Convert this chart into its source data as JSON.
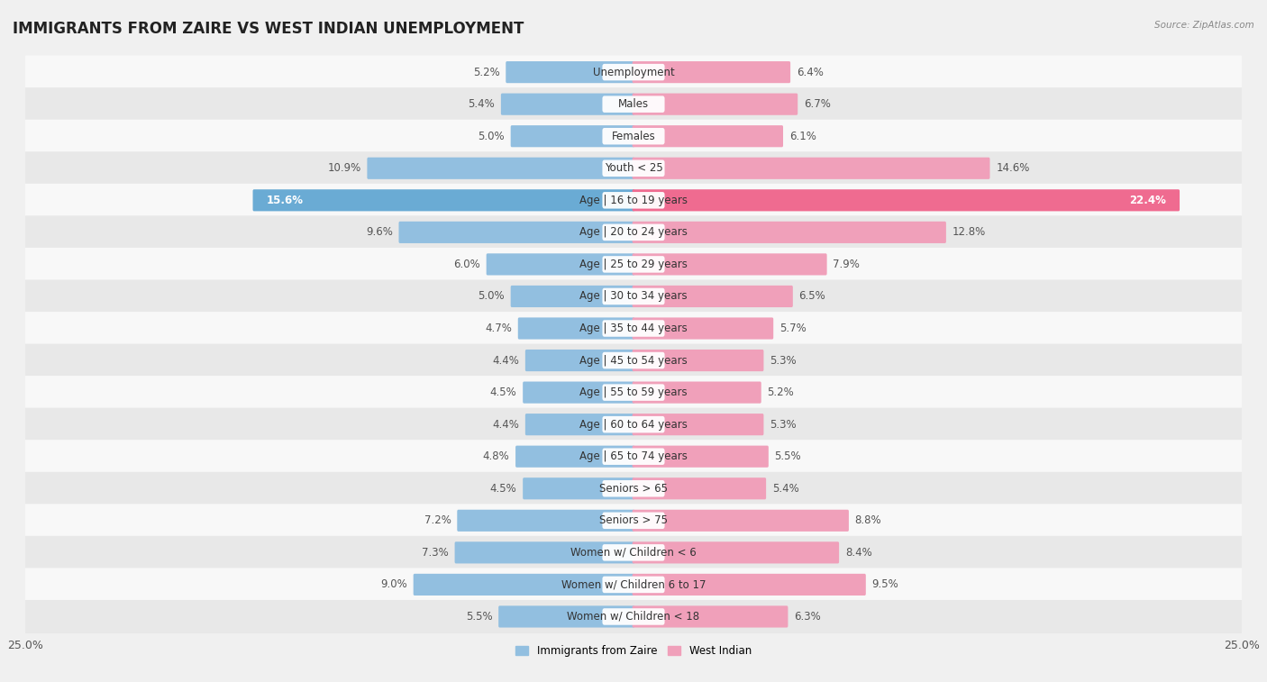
{
  "title": "IMMIGRANTS FROM ZAIRE VS WEST INDIAN UNEMPLOYMENT",
  "source_text": "Source: ZipAtlas.com",
  "categories": [
    "Unemployment",
    "Males",
    "Females",
    "Youth < 25",
    "Age | 16 to 19 years",
    "Age | 20 to 24 years",
    "Age | 25 to 29 years",
    "Age | 30 to 34 years",
    "Age | 35 to 44 years",
    "Age | 45 to 54 years",
    "Age | 55 to 59 years",
    "Age | 60 to 64 years",
    "Age | 65 to 74 years",
    "Seniors > 65",
    "Seniors > 75",
    "Women w/ Children < 6",
    "Women w/ Children 6 to 17",
    "Women w/ Children < 18"
  ],
  "left_values": [
    5.2,
    5.4,
    5.0,
    10.9,
    15.6,
    9.6,
    6.0,
    5.0,
    4.7,
    4.4,
    4.5,
    4.4,
    4.8,
    4.5,
    7.2,
    7.3,
    9.0,
    5.5
  ],
  "right_values": [
    6.4,
    6.7,
    6.1,
    14.6,
    22.4,
    12.8,
    7.9,
    6.5,
    5.7,
    5.3,
    5.2,
    5.3,
    5.5,
    5.4,
    8.8,
    8.4,
    9.5,
    6.3
  ],
  "left_color": "#92bfe0",
  "right_color": "#f0a0ba",
  "highlight_left_color": "#6aabd4",
  "highlight_right_color": "#ef6b90",
  "highlight_row": 4,
  "bar_height": 0.58,
  "x_max": 25.0,
  "background_color": "#f0f0f0",
  "row_bg_light": "#f8f8f8",
  "row_bg_dark": "#e8e8e8",
  "legend_left": "Immigrants from Zaire",
  "legend_right": "West Indian",
  "title_fontsize": 12,
  "label_fontsize": 8.5,
  "value_fontsize": 8.5,
  "axis_label_fontsize": 9
}
